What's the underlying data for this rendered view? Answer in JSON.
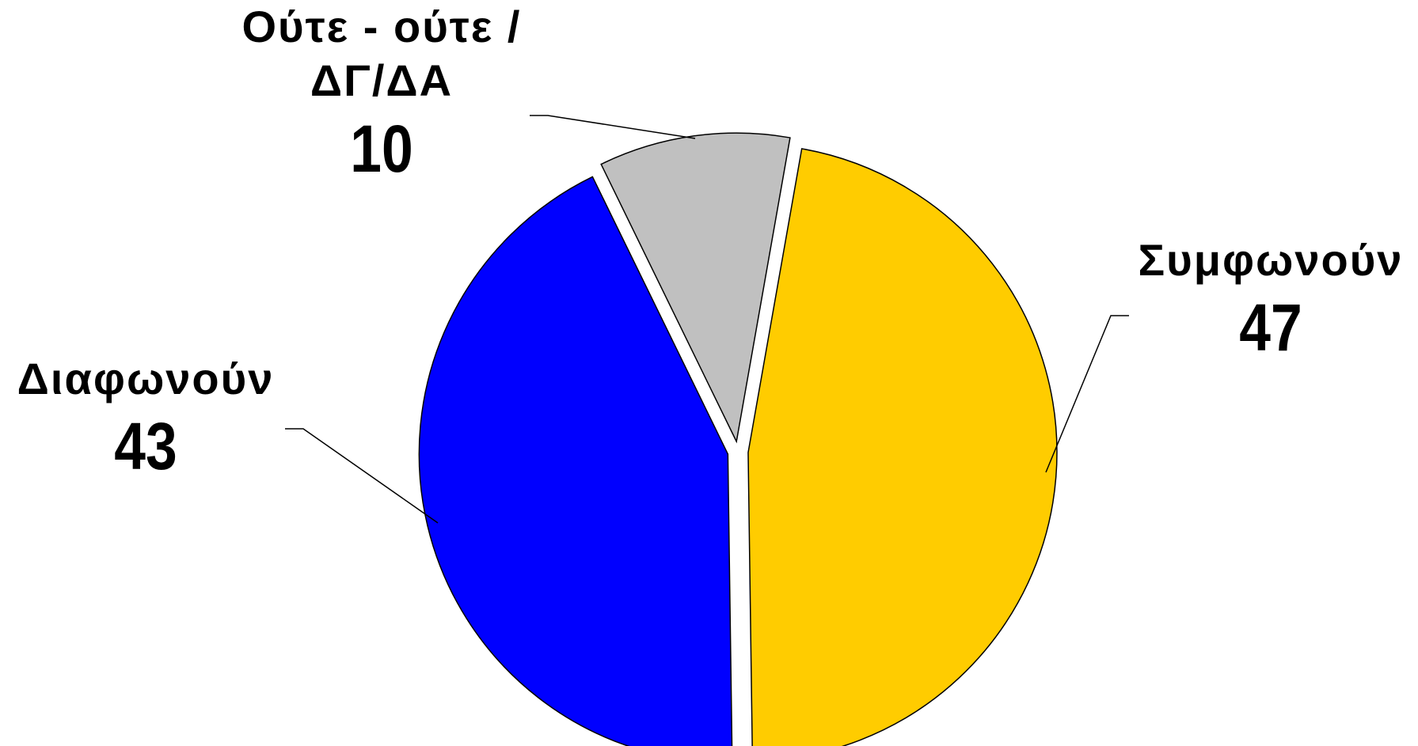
{
  "chart_data": {
    "type": "pie",
    "categories": [
      "Συμφωνούν",
      "Διαφωνούν",
      "Ούτε - ούτε / ΔΓ/ΔΑ"
    ],
    "values": [
      47,
      43,
      10
    ],
    "colors": [
      "#FFCC00",
      "#0000FF",
      "#C0C0C0"
    ]
  }
}
